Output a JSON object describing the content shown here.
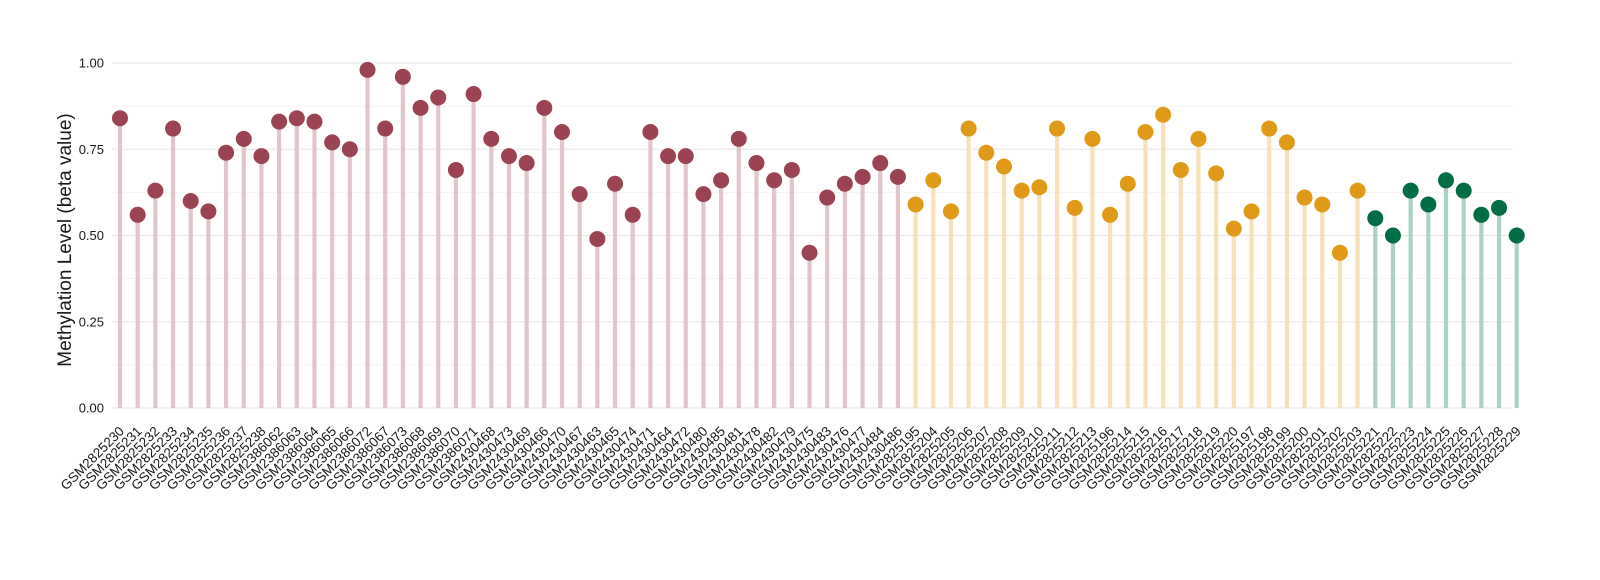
{
  "chart_data": {
    "type": "lollipop",
    "title": "",
    "xlabel": "",
    "ylabel": "Methylation Level (beta value)",
    "ylim": [
      0,
      1
    ],
    "yticks": [
      "0.00",
      "0.25",
      "0.50",
      "0.75",
      "1.00"
    ],
    "grid": true,
    "legend": "none",
    "groups": [
      {
        "color": "#9b4352",
        "stem_color": "#e0c6cb"
      },
      {
        "color": "#e19a17",
        "stem_color": "#f5e2ba"
      },
      {
        "color": "#006d45",
        "stem_color": "#abd3c4"
      }
    ],
    "points": [
      {
        "x": "GSM2825230",
        "y": 0.84,
        "group": 0
      },
      {
        "x": "GSM2825231",
        "y": 0.56,
        "group": 0
      },
      {
        "x": "GSM2825232",
        "y": 0.63,
        "group": 0
      },
      {
        "x": "GSM2825233",
        "y": 0.81,
        "group": 0
      },
      {
        "x": "GSM2825234",
        "y": 0.6,
        "group": 0
      },
      {
        "x": "GSM2825235",
        "y": 0.57,
        "group": 0
      },
      {
        "x": "GSM2825236",
        "y": 0.74,
        "group": 0
      },
      {
        "x": "GSM2825237",
        "y": 0.78,
        "group": 0
      },
      {
        "x": "GSM2825238",
        "y": 0.73,
        "group": 0
      },
      {
        "x": "GSM2386062",
        "y": 0.83,
        "group": 0
      },
      {
        "x": "GSM2386063",
        "y": 0.84,
        "group": 0
      },
      {
        "x": "GSM2386064",
        "y": 0.83,
        "group": 0
      },
      {
        "x": "GSM2386065",
        "y": 0.77,
        "group": 0
      },
      {
        "x": "GSM2386066",
        "y": 0.75,
        "group": 0
      },
      {
        "x": "GSM2386072",
        "y": 0.98,
        "group": 0
      },
      {
        "x": "GSM2386067",
        "y": 0.81,
        "group": 0
      },
      {
        "x": "GSM2386073",
        "y": 0.96,
        "group": 0
      },
      {
        "x": "GSM2386068",
        "y": 0.87,
        "group": 0
      },
      {
        "x": "GSM2386069",
        "y": 0.9,
        "group": 0
      },
      {
        "x": "GSM2386070",
        "y": 0.69,
        "group": 0
      },
      {
        "x": "GSM2386071",
        "y": 0.91,
        "group": 0
      },
      {
        "x": "GSM2430468",
        "y": 0.78,
        "group": 0
      },
      {
        "x": "GSM2430473",
        "y": 0.73,
        "group": 0
      },
      {
        "x": "GSM2430469",
        "y": 0.71,
        "group": 0
      },
      {
        "x": "GSM2430466",
        "y": 0.87,
        "group": 0
      },
      {
        "x": "GSM2430470",
        "y": 0.8,
        "group": 0
      },
      {
        "x": "GSM2430467",
        "y": 0.62,
        "group": 0
      },
      {
        "x": "GSM2430463",
        "y": 0.49,
        "group": 0
      },
      {
        "x": "GSM2430465",
        "y": 0.65,
        "group": 0
      },
      {
        "x": "GSM2430474",
        "y": 0.56,
        "group": 0
      },
      {
        "x": "GSM2430471",
        "y": 0.8,
        "group": 0
      },
      {
        "x": "GSM2430464",
        "y": 0.73,
        "group": 0
      },
      {
        "x": "GSM2430472",
        "y": 0.73,
        "group": 0
      },
      {
        "x": "GSM2430480",
        "y": 0.62,
        "group": 0
      },
      {
        "x": "GSM2430485",
        "y": 0.66,
        "group": 0
      },
      {
        "x": "GSM2430481",
        "y": 0.78,
        "group": 0
      },
      {
        "x": "GSM2430478",
        "y": 0.71,
        "group": 0
      },
      {
        "x": "GSM2430482",
        "y": 0.66,
        "group": 0
      },
      {
        "x": "GSM2430479",
        "y": 0.69,
        "group": 0
      },
      {
        "x": "GSM2430475",
        "y": 0.45,
        "group": 0
      },
      {
        "x": "GSM2430483",
        "y": 0.61,
        "group": 0
      },
      {
        "x": "GSM2430476",
        "y": 0.65,
        "group": 0
      },
      {
        "x": "GSM2430477",
        "y": 0.67,
        "group": 0
      },
      {
        "x": "GSM2430484",
        "y": 0.71,
        "group": 0
      },
      {
        "x": "GSM2430486",
        "y": 0.67,
        "group": 0
      },
      {
        "x": "GSM2825195",
        "y": 0.59,
        "group": 1
      },
      {
        "x": "GSM2825204",
        "y": 0.66,
        "group": 1
      },
      {
        "x": "GSM2825205",
        "y": 0.57,
        "group": 1
      },
      {
        "x": "GSM2825206",
        "y": 0.81,
        "group": 1
      },
      {
        "x": "GSM2825207",
        "y": 0.74,
        "group": 1
      },
      {
        "x": "GSM2825208",
        "y": 0.7,
        "group": 1
      },
      {
        "x": "GSM2825209",
        "y": 0.63,
        "group": 1
      },
      {
        "x": "GSM2825210",
        "y": 0.64,
        "group": 1
      },
      {
        "x": "GSM2825211",
        "y": 0.81,
        "group": 1
      },
      {
        "x": "GSM2825212",
        "y": 0.58,
        "group": 1
      },
      {
        "x": "GSM2825213",
        "y": 0.78,
        "group": 1
      },
      {
        "x": "GSM2825196",
        "y": 0.56,
        "group": 1
      },
      {
        "x": "GSM2825214",
        "y": 0.65,
        "group": 1
      },
      {
        "x": "GSM2825215",
        "y": 0.8,
        "group": 1
      },
      {
        "x": "GSM2825216",
        "y": 0.85,
        "group": 1
      },
      {
        "x": "GSM2825217",
        "y": 0.69,
        "group": 1
      },
      {
        "x": "GSM2825218",
        "y": 0.78,
        "group": 1
      },
      {
        "x": "GSM2825219",
        "y": 0.68,
        "group": 1
      },
      {
        "x": "GSM2825220",
        "y": 0.52,
        "group": 1
      },
      {
        "x": "GSM2825197",
        "y": 0.57,
        "group": 1
      },
      {
        "x": "GSM2825198",
        "y": 0.81,
        "group": 1
      },
      {
        "x": "GSM2825199",
        "y": 0.77,
        "group": 1
      },
      {
        "x": "GSM2825200",
        "y": 0.61,
        "group": 1
      },
      {
        "x": "GSM2825201",
        "y": 0.59,
        "group": 1
      },
      {
        "x": "GSM2825202",
        "y": 0.45,
        "group": 1
      },
      {
        "x": "GSM2825203",
        "y": 0.63,
        "group": 1
      },
      {
        "x": "GSM2825221",
        "y": 0.55,
        "group": 2
      },
      {
        "x": "GSM2825222",
        "y": 0.5,
        "group": 2
      },
      {
        "x": "GSM2825223",
        "y": 0.63,
        "group": 2
      },
      {
        "x": "GSM2825224",
        "y": 0.59,
        "group": 2
      },
      {
        "x": "GSM2825225",
        "y": 0.66,
        "group": 2
      },
      {
        "x": "GSM2825226",
        "y": 0.63,
        "group": 2
      },
      {
        "x": "GSM2825227",
        "y": 0.56,
        "group": 2
      },
      {
        "x": "GSM2825228",
        "y": 0.58,
        "group": 2
      },
      {
        "x": "GSM2825229",
        "y": 0.5,
        "group": 2
      }
    ]
  }
}
